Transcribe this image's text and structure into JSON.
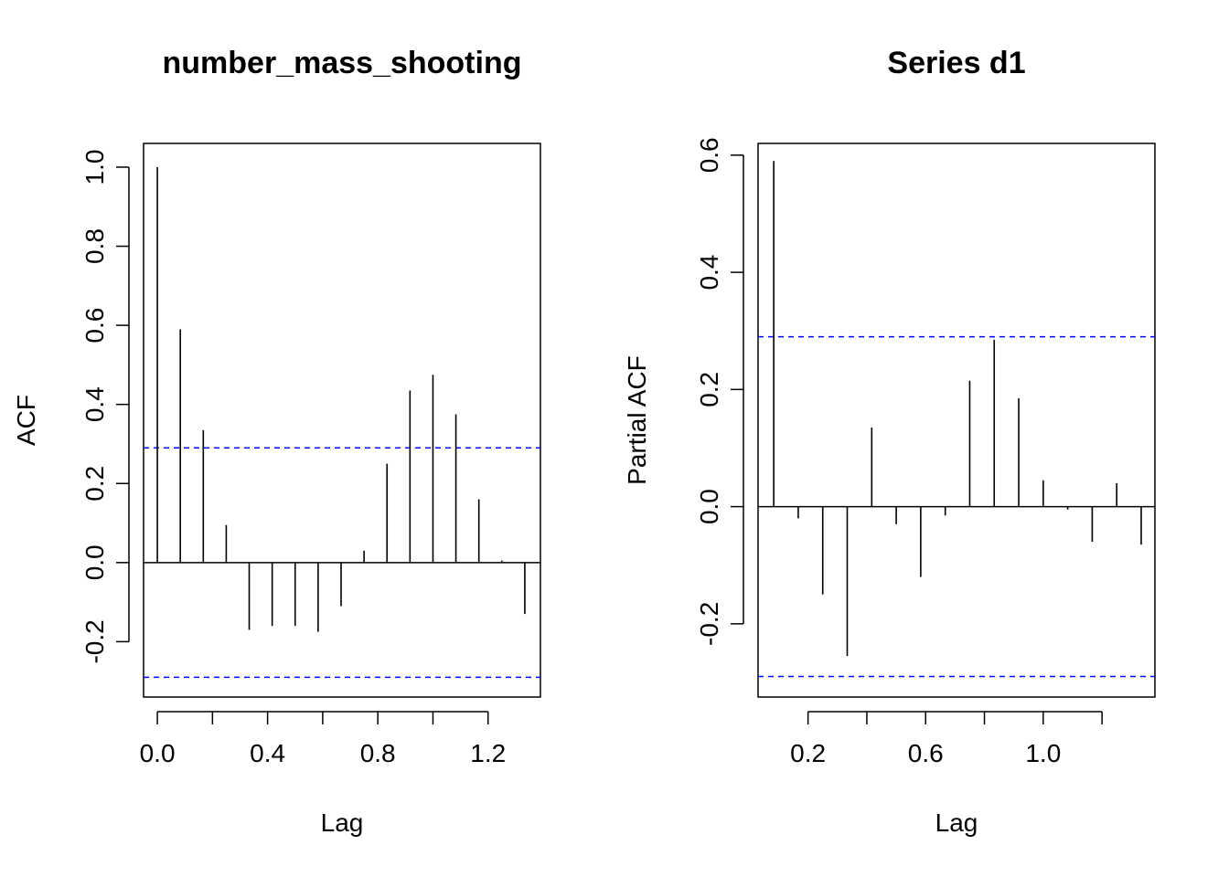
{
  "chart_data": [
    {
      "type": "bar",
      "title": "number_mass_shooting",
      "xlabel": "Lag",
      "ylabel": "ACF",
      "xlim": [
        -0.05,
        1.39
      ],
      "ylim": [
        -0.34,
        1.06
      ],
      "x_ticks": [
        0.0,
        0.4,
        0.8,
        1.2
      ],
      "x_tick_labels": [
        "0.0",
        "0.4",
        "0.8",
        "1.2"
      ],
      "x_minor_ticks": [
        0.2,
        0.6,
        1.0
      ],
      "y_ticks": [
        -0.2,
        0.0,
        0.2,
        0.4,
        0.6,
        0.8,
        1.0
      ],
      "y_tick_labels": [
        "-0.2",
        "0.0",
        "0.2",
        "0.4",
        "0.6",
        "0.8",
        "1.0"
      ],
      "confidence_band": 0.29,
      "lags": [
        0.0,
        0.0833,
        0.1667,
        0.25,
        0.3333,
        0.4167,
        0.5,
        0.5833,
        0.6667,
        0.75,
        0.8333,
        0.9167,
        1.0,
        1.0833,
        1.1667,
        1.25,
        1.3333
      ],
      "values": [
        1.0,
        0.59,
        0.335,
        0.095,
        -0.17,
        -0.16,
        -0.16,
        -0.175,
        -0.11,
        0.03,
        0.25,
        0.435,
        0.475,
        0.375,
        0.16,
        0.005,
        -0.13
      ],
      "colors": {
        "spike": "#000000",
        "band": "#0000ff"
      }
    },
    {
      "type": "bar",
      "title": "Series  d1",
      "xlabel": "Lag",
      "ylabel": "Partial ACF",
      "xlim": [
        0.03,
        1.38
      ],
      "ylim": [
        -0.325,
        0.62
      ],
      "x_ticks": [
        0.2,
        0.6,
        1.0
      ],
      "x_tick_labels": [
        "0.2",
        "0.6",
        "1.0"
      ],
      "x_minor_ticks": [
        0.4,
        0.8,
        1.2
      ],
      "y_ticks": [
        -0.2,
        0.0,
        0.2,
        0.4,
        0.6
      ],
      "y_tick_labels": [
        "-0.2",
        "0.0",
        "0.2",
        "0.4",
        "0.6"
      ],
      "confidence_band": 0.29,
      "lags": [
        0.0833,
        0.1667,
        0.25,
        0.3333,
        0.4167,
        0.5,
        0.5833,
        0.6667,
        0.75,
        0.8333,
        0.9167,
        1.0,
        1.0833,
        1.1667,
        1.25,
        1.3333
      ],
      "values": [
        0.59,
        -0.02,
        -0.15,
        -0.255,
        0.135,
        -0.03,
        -0.12,
        -0.015,
        0.215,
        0.285,
        0.185,
        0.045,
        -0.005,
        -0.06,
        0.04,
        -0.065
      ],
      "colors": {
        "spike": "#000000",
        "band": "#0000ff"
      }
    }
  ]
}
